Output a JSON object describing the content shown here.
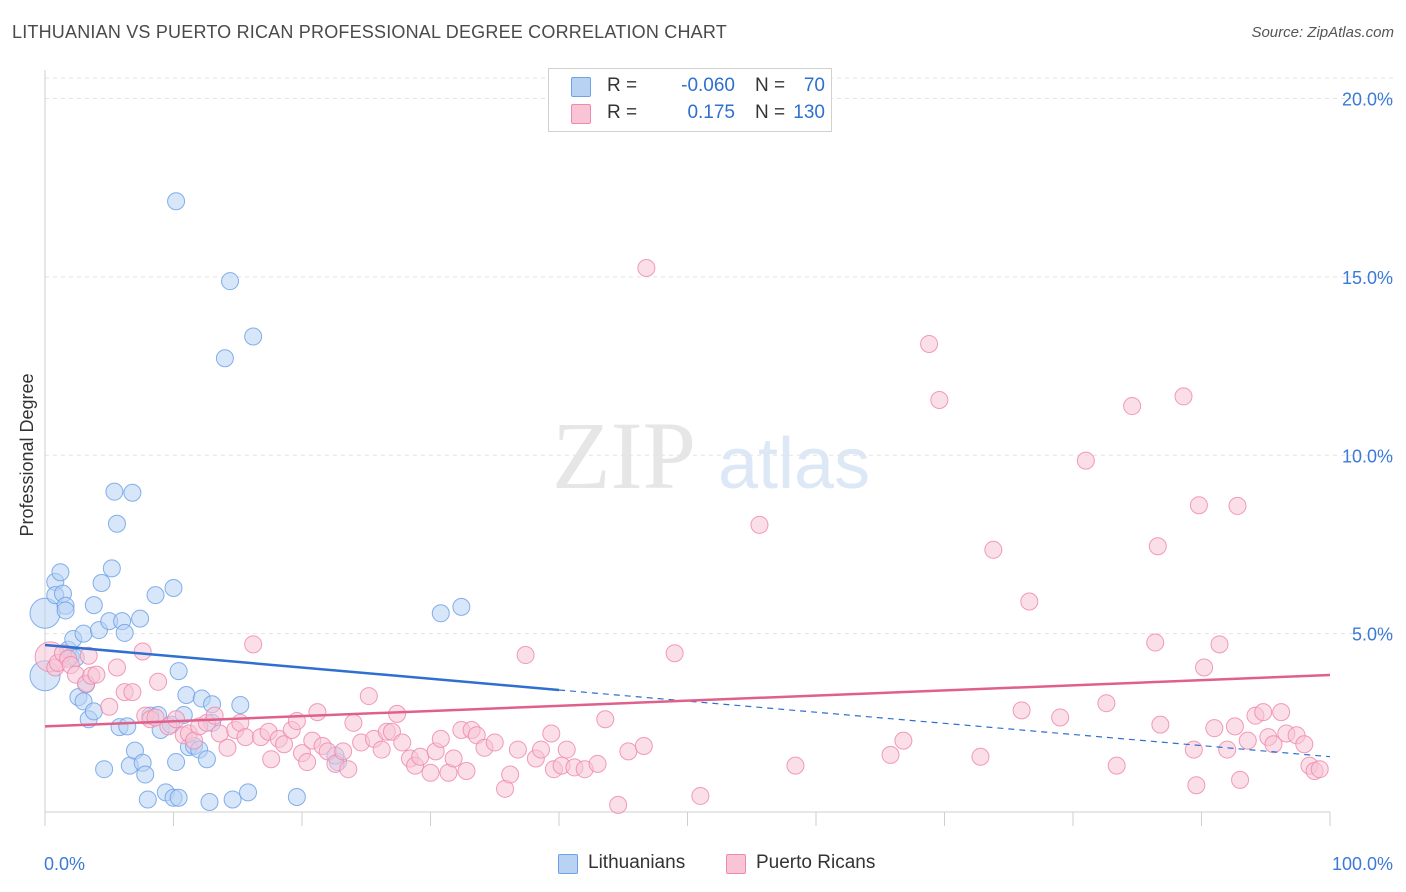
{
  "chart_data": {
    "type": "scatter",
    "title": "LITHUANIAN VS PUERTO RICAN PROFESSIONAL DEGREE CORRELATION CHART",
    "source": "Source: ZipAtlas.com",
    "ylabel": "Professional Degree",
    "xlabel": "",
    "xlim": [
      0,
      100
    ],
    "ylim": [
      0,
      20.8
    ],
    "x_tick_labels": [
      "0.0%",
      "100.0%"
    ],
    "y_ticks": [
      {
        "value": 5,
        "label": "5.0%"
      },
      {
        "value": 10,
        "label": "10.0%"
      },
      {
        "value": 15,
        "label": "15.0%"
      },
      {
        "value": 20,
        "label": "20.0%"
      }
    ],
    "grid": true,
    "watermark": "ZIPatlas",
    "legend": [
      {
        "r_label": "R =",
        "r_value": "-0.060",
        "n_label": "N =",
        "n_value": "70"
      },
      {
        "r_label": "R =",
        "r_value": "0.175",
        "n_label": "N =",
        "n_value": "130"
      }
    ],
    "series": [
      {
        "name": "Lithuanians",
        "color": "#6ea2e8",
        "fill": "#b8d2f4",
        "line_color": "#2f6fcf",
        "trend": {
          "x0": 0,
          "y0": 4.68,
          "x1_solid": 40,
          "y1_solid": 3.42,
          "x1": 100,
          "y1": 1.55
        },
        "points": [
          [
            0.0,
            5.57
          ],
          [
            0.0,
            3.82
          ],
          [
            0.8,
            6.45
          ],
          [
            0.8,
            6.08
          ],
          [
            1.2,
            6.72
          ],
          [
            1.4,
            6.12
          ],
          [
            1.6,
            5.78
          ],
          [
            1.6,
            5.65
          ],
          [
            1.8,
            4.55
          ],
          [
            2.0,
            4.35
          ],
          [
            2.2,
            4.85
          ],
          [
            2.4,
            4.32
          ],
          [
            2.6,
            3.22
          ],
          [
            3.0,
            5.0
          ],
          [
            3.0,
            3.1
          ],
          [
            3.2,
            3.58
          ],
          [
            3.4,
            2.6
          ],
          [
            3.8,
            2.82
          ],
          [
            3.8,
            5.8
          ],
          [
            4.2,
            5.1
          ],
          [
            4.4,
            6.42
          ],
          [
            4.6,
            1.2
          ],
          [
            5.0,
            5.35
          ],
          [
            5.2,
            6.83
          ],
          [
            5.4,
            8.98
          ],
          [
            5.6,
            8.08
          ],
          [
            5.8,
            2.38
          ],
          [
            6.0,
            5.35
          ],
          [
            6.2,
            5.02
          ],
          [
            6.4,
            2.4
          ],
          [
            6.6,
            1.3
          ],
          [
            6.8,
            8.95
          ],
          [
            7.0,
            1.72
          ],
          [
            7.4,
            5.42
          ],
          [
            7.6,
            1.38
          ],
          [
            7.8,
            1.05
          ],
          [
            8.0,
            0.35
          ],
          [
            8.2,
            2.7
          ],
          [
            8.6,
            6.08
          ],
          [
            8.8,
            2.72
          ],
          [
            9.0,
            2.3
          ],
          [
            9.4,
            0.55
          ],
          [
            9.8,
            2.45
          ],
          [
            10.0,
            6.28
          ],
          [
            10.0,
            0.4
          ],
          [
            10.2,
            1.4
          ],
          [
            10.4,
            3.95
          ],
          [
            10.4,
            0.4
          ],
          [
            10.8,
            2.72
          ],
          [
            10.2,
            17.12
          ],
          [
            11.0,
            3.28
          ],
          [
            11.2,
            1.82
          ],
          [
            11.6,
            1.85
          ],
          [
            12.0,
            1.75
          ],
          [
            12.2,
            3.18
          ],
          [
            12.6,
            1.48
          ],
          [
            12.8,
            0.28
          ],
          [
            13.0,
            2.5
          ],
          [
            13.0,
            3.02
          ],
          [
            14.0,
            12.72
          ],
          [
            14.4,
            14.88
          ],
          [
            14.6,
            0.35
          ],
          [
            15.2,
            3.0
          ],
          [
            15.8,
            0.55
          ],
          [
            16.2,
            13.33
          ],
          [
            19.6,
            0.42
          ],
          [
            22.8,
            1.4
          ],
          [
            22.6,
            1.58
          ],
          [
            30.8,
            5.57
          ],
          [
            32.4,
            5.75
          ]
        ]
      },
      {
        "name": "Puerto Ricans",
        "color": "#f08aac",
        "fill": "#f8c4d6",
        "line_color": "#e0608c",
        "trend": {
          "x0": 0,
          "y0": 2.4,
          "x1": 100,
          "y1": 3.84
        },
        "points": [
          [
            0.4,
            4.35
          ],
          [
            0.8,
            4.05
          ],
          [
            1.0,
            4.18
          ],
          [
            1.4,
            4.45
          ],
          [
            1.8,
            4.3
          ],
          [
            2.0,
            4.12
          ],
          [
            2.4,
            3.85
          ],
          [
            3.2,
            3.6
          ],
          [
            3.4,
            4.38
          ],
          [
            3.6,
            3.82
          ],
          [
            4.0,
            3.85
          ],
          [
            5.0,
            2.95
          ],
          [
            5.6,
            4.05
          ],
          [
            6.2,
            3.36
          ],
          [
            6.8,
            3.36
          ],
          [
            7.6,
            4.5
          ],
          [
            7.8,
            2.7
          ],
          [
            8.2,
            2.6
          ],
          [
            8.6,
            2.65
          ],
          [
            8.8,
            3.65
          ],
          [
            9.6,
            2.4
          ],
          [
            10.2,
            2.6
          ],
          [
            10.8,
            2.15
          ],
          [
            11.2,
            2.2
          ],
          [
            11.6,
            2.0
          ],
          [
            12.0,
            2.4
          ],
          [
            12.6,
            2.5
          ],
          [
            13.2,
            2.7
          ],
          [
            13.6,
            2.2
          ],
          [
            14.2,
            1.8
          ],
          [
            14.8,
            2.3
          ],
          [
            15.2,
            2.5
          ],
          [
            15.6,
            2.1
          ],
          [
            16.2,
            4.7
          ],
          [
            16.8,
            2.1
          ],
          [
            17.4,
            2.25
          ],
          [
            17.6,
            1.48
          ],
          [
            18.2,
            2.05
          ],
          [
            18.6,
            1.9
          ],
          [
            19.2,
            2.3
          ],
          [
            19.6,
            2.55
          ],
          [
            20.0,
            1.65
          ],
          [
            20.4,
            1.4
          ],
          [
            20.8,
            2.0
          ],
          [
            21.2,
            2.8
          ],
          [
            21.6,
            1.85
          ],
          [
            22.0,
            1.7
          ],
          [
            22.6,
            1.35
          ],
          [
            23.2,
            1.7
          ],
          [
            23.6,
            1.2
          ],
          [
            24.0,
            2.5
          ],
          [
            24.6,
            1.95
          ],
          [
            25.2,
            3.25
          ],
          [
            25.6,
            2.05
          ],
          [
            26.2,
            1.75
          ],
          [
            26.6,
            2.25
          ],
          [
            27.0,
            2.25
          ],
          [
            27.4,
            2.75
          ],
          [
            27.8,
            1.95
          ],
          [
            28.4,
            1.5
          ],
          [
            28.8,
            1.3
          ],
          [
            29.2,
            1.55
          ],
          [
            30.0,
            1.1
          ],
          [
            30.4,
            1.7
          ],
          [
            30.8,
            2.05
          ],
          [
            31.4,
            1.1
          ],
          [
            31.8,
            1.5
          ],
          [
            32.4,
            2.3
          ],
          [
            32.8,
            1.15
          ],
          [
            33.2,
            2.3
          ],
          [
            33.6,
            2.15
          ],
          [
            34.2,
            1.8
          ],
          [
            35.0,
            1.95
          ],
          [
            35.8,
            0.65
          ],
          [
            36.2,
            1.05
          ],
          [
            36.8,
            1.75
          ],
          [
            37.4,
            4.4
          ],
          [
            38.2,
            1.5
          ],
          [
            38.6,
            1.75
          ],
          [
            39.4,
            2.2
          ],
          [
            39.6,
            1.2
          ],
          [
            40.2,
            1.3
          ],
          [
            40.6,
            1.75
          ],
          [
            41.2,
            1.25
          ],
          [
            42.0,
            1.2
          ],
          [
            43.0,
            1.35
          ],
          [
            43.6,
            2.6
          ],
          [
            44.6,
            0.2
          ],
          [
            45.4,
            1.7
          ],
          [
            46.6,
            1.85
          ],
          [
            46.8,
            15.25
          ],
          [
            49.0,
            4.45
          ],
          [
            51.0,
            0.45
          ],
          [
            55.6,
            8.05
          ],
          [
            58.4,
            1.3
          ],
          [
            65.8,
            1.6
          ],
          [
            66.8,
            2.0
          ],
          [
            68.8,
            13.12
          ],
          [
            69.6,
            11.55
          ],
          [
            72.8,
            1.55
          ],
          [
            73.8,
            7.35
          ],
          [
            76.0,
            2.85
          ],
          [
            76.6,
            5.9
          ],
          [
            79.0,
            2.65
          ],
          [
            81.0,
            9.85
          ],
          [
            82.6,
            3.05
          ],
          [
            83.4,
            1.3
          ],
          [
            84.6,
            11.38
          ],
          [
            86.4,
            4.75
          ],
          [
            86.6,
            7.45
          ],
          [
            86.8,
            2.45
          ],
          [
            88.6,
            11.65
          ],
          [
            89.4,
            1.75
          ],
          [
            89.6,
            0.75
          ],
          [
            89.8,
            8.6
          ],
          [
            90.2,
            4.05
          ],
          [
            91.0,
            2.35
          ],
          [
            91.4,
            4.7
          ],
          [
            92.0,
            1.75
          ],
          [
            92.6,
            2.4
          ],
          [
            92.8,
            8.58
          ],
          [
            93.0,
            0.9
          ],
          [
            93.6,
            2.0
          ],
          [
            94.2,
            2.7
          ],
          [
            94.8,
            2.8
          ],
          [
            95.2,
            2.1
          ],
          [
            95.6,
            1.9
          ],
          [
            96.2,
            2.8
          ],
          [
            96.6,
            2.2
          ],
          [
            97.4,
            2.15
          ],
          [
            98.0,
            1.9
          ],
          [
            98.4,
            1.3
          ],
          [
            98.8,
            1.15
          ],
          [
            99.2,
            1.2
          ]
        ]
      }
    ]
  }
}
